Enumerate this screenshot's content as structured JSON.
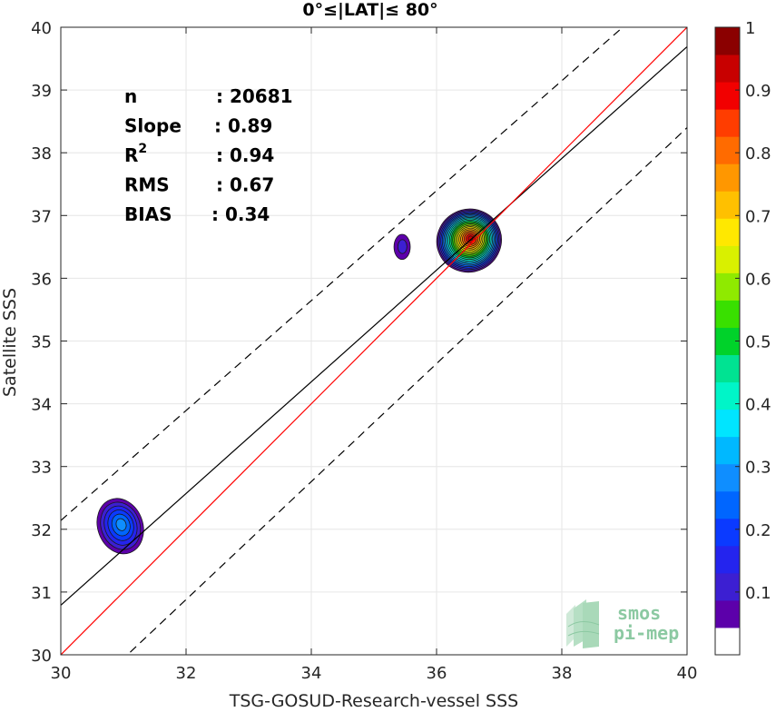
{
  "chart_data": {
    "type": "heatmap",
    "title": "0°≤|LAT|≤ 80°",
    "xlabel": "TSG-GOSUD-Research-vessel SSS",
    "ylabel": "Satellite SSS",
    "xlim": [
      30,
      40
    ],
    "ylim": [
      30,
      40
    ],
    "xticks": [
      "30",
      "32",
      "34",
      "36",
      "38",
      "40"
    ],
    "yticks": [
      "30",
      "31",
      "32",
      "33",
      "34",
      "35",
      "36",
      "37",
      "38",
      "39",
      "40"
    ],
    "grid": true,
    "stats": [
      {
        "label": "n",
        "value": ": 20681"
      },
      {
        "label": "Slope",
        "value": ": 0.89"
      },
      {
        "label": "R",
        "sup": "2",
        "value": ": 0.94"
      },
      {
        "label": "RMS",
        "value": ": 0.67"
      },
      {
        "label": "BIAS",
        "value": ": 0.34"
      }
    ],
    "lines": {
      "identity": {
        "slope": 1.0,
        "intercept": 0.0,
        "color": "#ff0000"
      },
      "fit": {
        "slope": 0.89,
        "intercept": 4.09,
        "color": "#000000"
      },
      "upper_bound": {
        "x": [
          30,
          40
        ],
        "y": [
          32.14,
          40.9
        ],
        "style": "dashed",
        "color": "#000000"
      },
      "lower_bound": {
        "x": [
          30,
          40
        ],
        "y": [
          29.0,
          38.4
        ],
        "style": "dashed",
        "color": "#000000"
      }
    },
    "density_clusters": [
      {
        "name": "main",
        "x_center": 36.52,
        "y_center": 36.6,
        "rx": 0.52,
        "ry": 0.5,
        "angle": -25,
        "peak": 0.97
      },
      {
        "name": "small",
        "x_center": 35.45,
        "y_center": 36.5,
        "rx": 0.13,
        "ry": 0.2,
        "angle": 0,
        "peak": 0.1
      },
      {
        "name": "low-salinity",
        "x_center": 30.95,
        "y_center": 32.05,
        "rx": 0.36,
        "ry": 0.45,
        "angle": -20,
        "peak": 0.25
      }
    ],
    "colorbar": {
      "min": 0,
      "max": 1,
      "ticks": [
        "0.1",
        "0.2",
        "0.3",
        "0.4",
        "0.5",
        "0.6",
        "0.7",
        "0.8",
        "0.9",
        "1"
      ],
      "colors": [
        "#ffffff",
        "#5c00aa",
        "#3c1fd2",
        "#2424ee",
        "#0b3aff",
        "#0066ff",
        "#0f8eff",
        "#00b8ff",
        "#00e5ff",
        "#00f5c8",
        "#00e392",
        "#00d22a",
        "#39e000",
        "#8fea00",
        "#d9f000",
        "#ffe800",
        "#ffc000",
        "#ff9700",
        "#ff6b00",
        "#ff3d00",
        "#f20000",
        "#c80000",
        "#8b0000"
      ]
    }
  },
  "logo": {
    "line1": "smos",
    "line2": "pi-mep"
  }
}
